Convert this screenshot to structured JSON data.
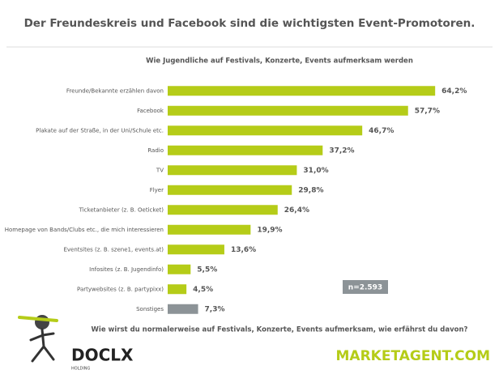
{
  "header": {
    "title": "Der Freundeskreis und Facebook sind die wichtigsten Event-Promotoren."
  },
  "chart_data": {
    "type": "bar",
    "orientation": "horizontal",
    "title": "Wie Jugendliche auf Festivals, Konzerte, Events aufmerksam werden",
    "categories": [
      "Freunde/Bekannte erzählen davon",
      "Facebook",
      "Plakate auf der Straße, in der Uni/Schule etc.",
      "Radio",
      "TV",
      "Flyer",
      "Ticketanbieter (z. B. Oeticket)",
      "Homepage von Bands/Clubs etc., die mich interessieren",
      "Eventsites (z. B. szene1, events.at)",
      "Infosites (z. B. Jugendinfo)",
      "Partywebsites (z. B. partypixx)",
      "Sonstiges"
    ],
    "values": [
      64.2,
      57.7,
      46.7,
      37.2,
      31.0,
      29.8,
      26.4,
      19.9,
      13.6,
      5.5,
      4.5,
      7.3
    ],
    "value_labels": [
      "64,2%",
      "57,7%",
      "46,7%",
      "37,2%",
      "31,0%",
      "29,8%",
      "26,4%",
      "19,9%",
      "13,6%",
      "5,5%",
      "4,5%",
      "7,3%"
    ],
    "colors": [
      "#b5cc18",
      "#b5cc18",
      "#b5cc18",
      "#b5cc18",
      "#b5cc18",
      "#b5cc18",
      "#b5cc18",
      "#b5cc18",
      "#b5cc18",
      "#b5cc18",
      "#b5cc18",
      "#8c9397"
    ],
    "xlim": [
      0,
      70
    ],
    "annotation": "n=2.593",
    "question": "Wie wirst du normalerweise auf Festivals, Konzerte, Events aufmerksam, wie erfährst du davon?"
  },
  "footer": {
    "logo_left": "DOCLX",
    "logo_left_sub": "HOLDING",
    "logo_right": "MARKETAGENT.COM"
  }
}
